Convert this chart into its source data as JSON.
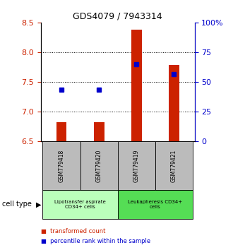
{
  "title": "GDS4079 / 7943314",
  "samples": [
    "GSM779418",
    "GSM779420",
    "GSM779419",
    "GSM779421"
  ],
  "bar_values": [
    6.82,
    6.82,
    8.38,
    7.78
  ],
  "bar_baseline": 6.5,
  "percentile_values": [
    7.37,
    7.37,
    7.8,
    7.63
  ],
  "ylim": [
    6.5,
    8.5
  ],
  "yticks_left": [
    6.5,
    7.0,
    7.5,
    8.0,
    8.5
  ],
  "yticks_right": [
    0,
    25,
    50,
    75,
    100
  ],
  "y_right_labels": [
    "0",
    "25",
    "50",
    "75",
    "100%"
  ],
  "bar_color": "#cc2200",
  "dot_color": "#0000cc",
  "groups": [
    {
      "label": "Lipotransfer aspirate\nCD34+ cells",
      "sample_indices": [
        0,
        1
      ],
      "color": "#bbffbb"
    },
    {
      "label": "Leukapheresis CD34+\ncells",
      "sample_indices": [
        2,
        3
      ],
      "color": "#55dd55"
    }
  ],
  "group_box_color": "#bbbbbb",
  "legend_red_label": "transformed count",
  "legend_blue_label": "percentile rank within the sample",
  "cell_type_label": "cell type",
  "background_color": "#ffffff",
  "dotted_grid_ticks": [
    7.0,
    7.5,
    8.0
  ],
  "bar_width": 0.28
}
